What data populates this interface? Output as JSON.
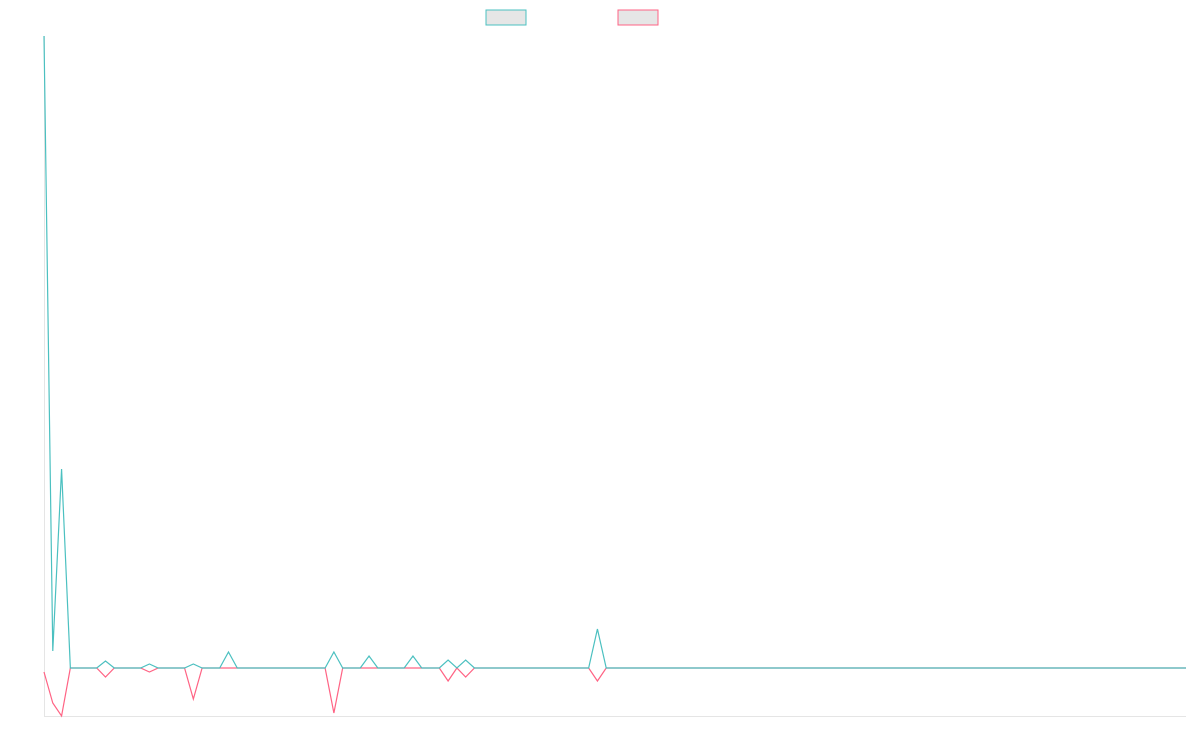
{
  "chart_data": {
    "type": "line",
    "ylim": [
      -48,
      632
    ],
    "series": [
      {
        "color": "#4bc0c0",
        "values": [
          632,
          17,
          199,
          0,
          0,
          0,
          0,
          7,
          0,
          0,
          0,
          0,
          4,
          0,
          0,
          0,
          0,
          4,
          0,
          0,
          0,
          16,
          0,
          0,
          0,
          0,
          0,
          0,
          0,
          0,
          0,
          0,
          0,
          16,
          0,
          0,
          0,
          12,
          0,
          0,
          0,
          0,
          12,
          0,
          0,
          0,
          8,
          0,
          8,
          0,
          0,
          0,
          0,
          0,
          0,
          0,
          0,
          0,
          0,
          0,
          0,
          0,
          0,
          39,
          0,
          0,
          0,
          0,
          0,
          0,
          0,
          0,
          0,
          0,
          0,
          0,
          0,
          0,
          0,
          0,
          0,
          0,
          0,
          0,
          0,
          0,
          0,
          0,
          0,
          0,
          0,
          0,
          0,
          0,
          0,
          0,
          0,
          0,
          0,
          0,
          0,
          0,
          0,
          0,
          0,
          0,
          0,
          0,
          0,
          0,
          0,
          0,
          0,
          0,
          0,
          0,
          0,
          0,
          0,
          0,
          0,
          0,
          0,
          0,
          0,
          0,
          0,
          0,
          0,
          0,
          0
        ]
      },
      {
        "color": "#ff6384",
        "values": [
          -4,
          -35,
          -48,
          0,
          0,
          0,
          0,
          -9,
          0,
          0,
          0,
          0,
          -4,
          0,
          0,
          0,
          0,
          -31,
          0,
          0,
          0,
          0,
          0,
          0,
          0,
          0,
          0,
          0,
          0,
          0,
          0,
          0,
          0,
          -45,
          0,
          0,
          0,
          0,
          0,
          0,
          0,
          0,
          0,
          0,
          0,
          0,
          -13,
          0,
          -9,
          0,
          0,
          0,
          0,
          0,
          0,
          0,
          0,
          0,
          0,
          0,
          0,
          0,
          0,
          -13,
          0,
          0,
          0,
          0,
          0,
          0,
          0,
          0,
          0,
          0,
          0,
          0,
          0,
          0,
          0,
          0,
          0,
          0,
          0,
          0,
          0,
          0,
          0,
          0,
          0,
          0,
          0,
          0,
          0,
          0,
          0,
          0,
          0,
          0,
          0,
          0,
          0,
          0,
          0,
          0,
          0,
          0,
          0,
          0,
          0,
          0,
          0,
          0,
          0,
          0,
          0,
          0,
          0,
          0,
          0,
          0,
          0,
          0,
          0,
          0,
          0,
          0,
          0,
          0,
          0,
          0,
          0
        ]
      }
    ]
  }
}
